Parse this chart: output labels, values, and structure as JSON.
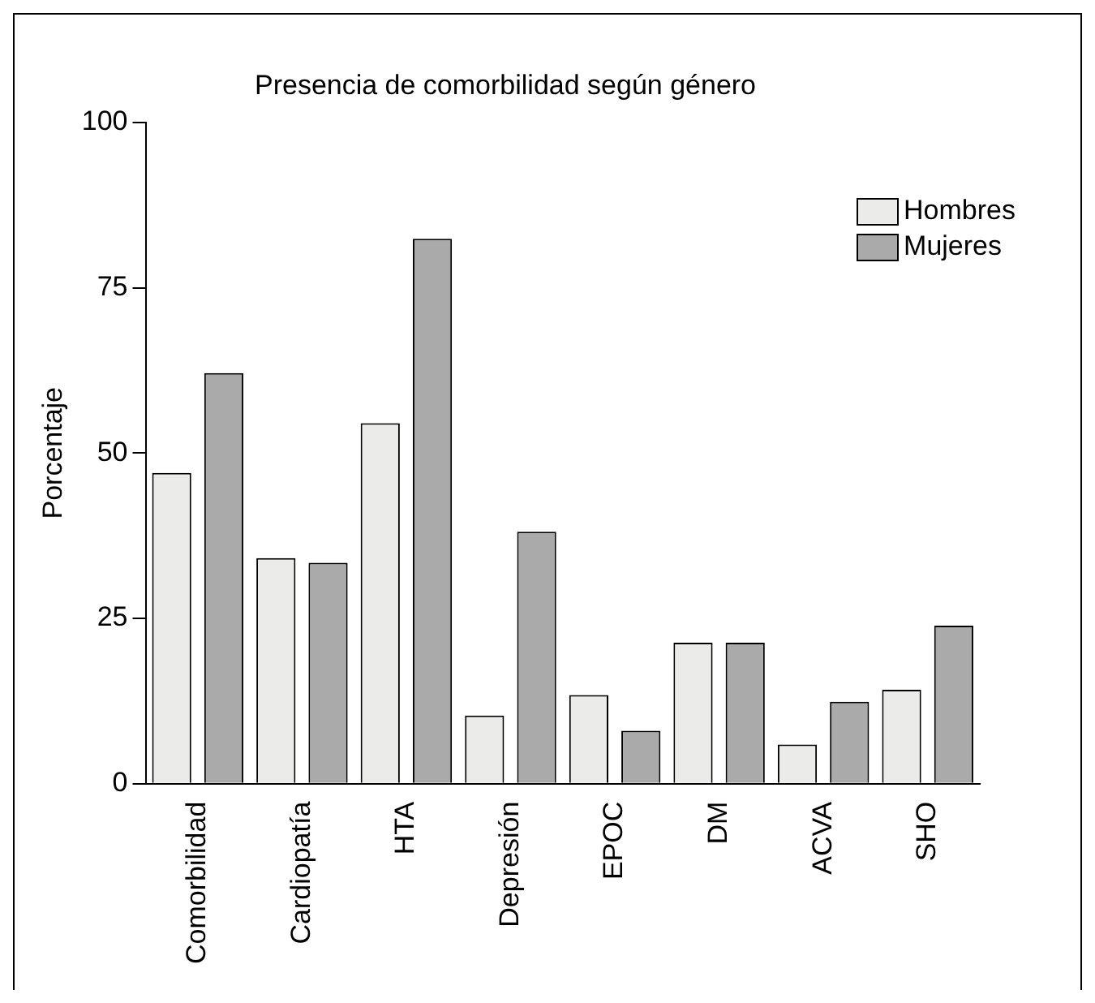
{
  "chart_data": {
    "type": "bar",
    "title": "Presencia de comorbilidad según género",
    "ylabel": "Porcentaje",
    "categories": [
      "Comorbilidad",
      "Cardiopatía",
      "HTA",
      "Depresión",
      "EPOC",
      "DM",
      "ACVA",
      "SHO"
    ],
    "series": [
      {
        "name": "Hombres",
        "color": "#ebebe9",
        "values": [
          47.0,
          34.1,
          54.5,
          10.3,
          13.4,
          21.3,
          5.9,
          14.2
        ]
      },
      {
        "name": "Mujeres",
        "color": "#aaaaaa",
        "values": [
          62.1,
          33.4,
          82.4,
          38.1,
          8.0,
          21.3,
          12.4,
          23.9
        ]
      }
    ],
    "ylim": [
      0,
      100
    ],
    "yticks": [
      0,
      25,
      50,
      75,
      100
    ],
    "grid": false,
    "legend": "top right"
  }
}
